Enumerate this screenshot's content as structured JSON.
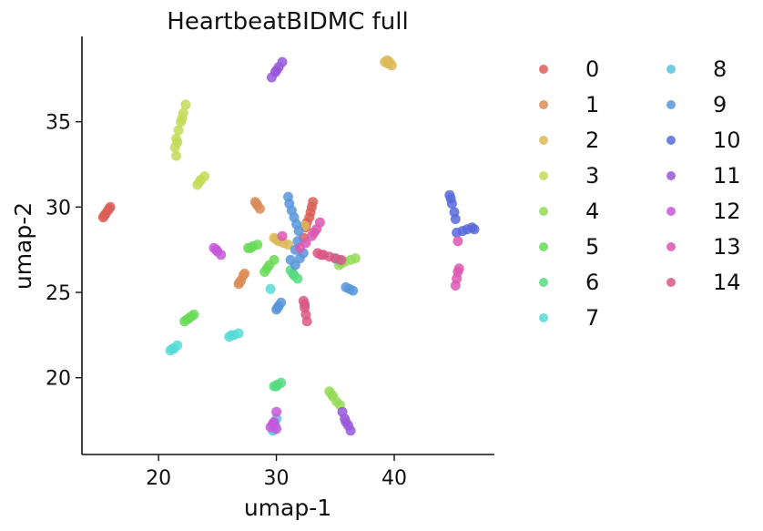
{
  "chart_data": {
    "type": "scatter",
    "title": "HeartbeatBIDMC full",
    "xlabel": "umap-1",
    "ylabel": "umap-2",
    "xlim": [
      13.5,
      48.5
    ],
    "ylim": [
      15.5,
      40.0
    ],
    "xticks": [
      20,
      30,
      40
    ],
    "yticks": [
      20,
      25,
      30,
      35
    ],
    "grid": false,
    "legend_position": "right-outside",
    "legend_columns": 2,
    "series": [
      {
        "name": "0",
        "color": "#db5f57",
        "points": [
          [
            15.3,
            29.4
          ],
          [
            15.5,
            29.6
          ],
          [
            15.7,
            29.8
          ],
          [
            15.9,
            30.0
          ],
          [
            15.4,
            29.5
          ],
          [
            15.8,
            29.9
          ],
          [
            32.3,
            28.2
          ],
          [
            32.5,
            28.8
          ],
          [
            32.8,
            29.4
          ],
          [
            33.0,
            30.0
          ],
          [
            33.1,
            30.3
          ],
          [
            32.6,
            29.1
          ],
          [
            32.9,
            29.7
          ]
        ]
      },
      {
        "name": "1",
        "color": "#db8c57",
        "points": [
          [
            28.2,
            30.3
          ],
          [
            28.4,
            30.1
          ],
          [
            28.6,
            29.9
          ],
          [
            28.3,
            30.2
          ],
          [
            26.8,
            25.5
          ],
          [
            27.0,
            25.7
          ],
          [
            27.2,
            26.0
          ],
          [
            27.3,
            26.1
          ],
          [
            26.9,
            25.6
          ]
        ]
      },
      {
        "name": "2",
        "color": "#dbba57",
        "points": [
          [
            39.2,
            38.5
          ],
          [
            39.5,
            38.4
          ],
          [
            39.8,
            38.3
          ],
          [
            39.4,
            38.6
          ],
          [
            39.6,
            38.5
          ],
          [
            29.8,
            28.2
          ],
          [
            30.2,
            28.0
          ],
          [
            30.6,
            27.9
          ],
          [
            31.0,
            27.8
          ],
          [
            32.4,
            28.9
          ],
          [
            30.0,
            28.1
          ]
        ]
      },
      {
        "name": "3",
        "color": "#c3db57",
        "points": [
          [
            21.5,
            33.0
          ],
          [
            21.4,
            33.5
          ],
          [
            21.5,
            34.0
          ],
          [
            21.7,
            34.5
          ],
          [
            21.9,
            35.0
          ],
          [
            22.1,
            35.5
          ],
          [
            22.3,
            36.0
          ],
          [
            22.0,
            35.2
          ],
          [
            21.6,
            33.8
          ],
          [
            23.3,
            31.3
          ],
          [
            23.6,
            31.6
          ],
          [
            23.9,
            31.8
          ],
          [
            23.5,
            31.5
          ]
        ]
      },
      {
        "name": "4",
        "color": "#95db57",
        "points": [
          [
            34.5,
            19.2
          ],
          [
            34.8,
            18.9
          ],
          [
            35.1,
            18.6
          ],
          [
            35.4,
            18.4
          ],
          [
            34.7,
            19.0
          ],
          [
            35.3,
            26.6
          ],
          [
            35.8,
            26.8
          ],
          [
            36.3,
            26.9
          ],
          [
            36.7,
            27.0
          ],
          [
            35.5,
            26.7
          ]
        ]
      },
      {
        "name": "5",
        "color": "#68db57",
        "points": [
          [
            22.2,
            23.3
          ],
          [
            22.6,
            23.5
          ],
          [
            23.0,
            23.7
          ],
          [
            22.4,
            23.4
          ],
          [
            22.8,
            23.6
          ],
          [
            27.6,
            27.6
          ],
          [
            28.0,
            27.7
          ],
          [
            28.4,
            27.8
          ],
          [
            27.8,
            27.6
          ],
          [
            29.0,
            26.2
          ],
          [
            29.4,
            26.6
          ],
          [
            29.8,
            26.9
          ],
          [
            29.2,
            26.4
          ]
        ]
      },
      {
        "name": "6",
        "color": "#57db80",
        "points": [
          [
            29.8,
            19.5
          ],
          [
            30.1,
            19.6
          ],
          [
            30.4,
            19.7
          ],
          [
            30.0,
            19.5
          ],
          [
            31.2,
            26.3
          ],
          [
            31.5,
            26.0
          ],
          [
            31.8,
            25.8
          ],
          [
            31.4,
            26.1
          ]
        ]
      },
      {
        "name": "7",
        "color": "#57dbd6",
        "points": [
          [
            21.0,
            21.6
          ],
          [
            21.3,
            21.7
          ],
          [
            21.6,
            21.9
          ],
          [
            21.2,
            21.7
          ],
          [
            26.0,
            22.4
          ],
          [
            26.4,
            22.5
          ],
          [
            26.8,
            22.6
          ],
          [
            26.2,
            22.5
          ],
          [
            29.5,
            25.2
          ]
        ]
      },
      {
        "name": "8",
        "color": "#57c3db",
        "points": [
          [
            29.7,
            16.9
          ],
          [
            29.8,
            17.3
          ],
          [
            30.0,
            17.6
          ],
          [
            29.9,
            17.2
          ],
          [
            35.0,
            27.0
          ],
          [
            35.3,
            26.9
          ]
        ]
      },
      {
        "name": "9",
        "color": "#5795db",
        "points": [
          [
            31.0,
            30.6
          ],
          [
            31.1,
            30.2
          ],
          [
            31.3,
            29.8
          ],
          [
            31.5,
            29.4
          ],
          [
            31.7,
            29.0
          ],
          [
            31.9,
            28.6
          ],
          [
            31.8,
            28.0
          ],
          [
            31.6,
            27.5
          ],
          [
            31.2,
            26.9
          ],
          [
            31.6,
            26.6
          ],
          [
            32.0,
            27.0
          ],
          [
            32.3,
            27.3
          ],
          [
            35.9,
            25.3
          ],
          [
            36.2,
            25.2
          ],
          [
            36.5,
            25.1
          ],
          [
            30.0,
            24.0
          ],
          [
            30.2,
            24.2
          ],
          [
            30.4,
            24.4
          ],
          [
            30.1,
            24.1
          ]
        ]
      },
      {
        "name": "10",
        "color": "#5768db",
        "points": [
          [
            44.7,
            30.7
          ],
          [
            44.9,
            30.2
          ],
          [
            45.1,
            29.7
          ],
          [
            45.2,
            29.3
          ],
          [
            45.3,
            28.5
          ],
          [
            45.8,
            28.6
          ],
          [
            46.2,
            28.7
          ],
          [
            46.6,
            28.8
          ],
          [
            46.8,
            28.7
          ],
          [
            44.8,
            30.5
          ]
        ]
      },
      {
        "name": "11",
        "color": "#9857db",
        "points": [
          [
            29.6,
            37.6
          ],
          [
            29.9,
            37.9
          ],
          [
            30.2,
            38.2
          ],
          [
            30.5,
            38.5
          ],
          [
            30.0,
            38.0
          ],
          [
            35.6,
            18.0
          ],
          [
            35.8,
            17.6
          ],
          [
            36.1,
            17.2
          ],
          [
            36.3,
            16.9
          ],
          [
            35.9,
            17.4
          ]
        ]
      },
      {
        "name": "12",
        "color": "#c657db",
        "points": [
          [
            24.7,
            27.6
          ],
          [
            25.0,
            27.4
          ],
          [
            25.3,
            27.2
          ],
          [
            24.9,
            27.5
          ],
          [
            29.5,
            17.1
          ],
          [
            29.8,
            17.4
          ],
          [
            30.0,
            17.0
          ],
          [
            29.7,
            17.3
          ],
          [
            30.0,
            18.0
          ]
        ]
      },
      {
        "name": "13",
        "color": "#db57b2",
        "points": [
          [
            32.0,
            27.6
          ],
          [
            32.5,
            27.9
          ],
          [
            33.0,
            28.3
          ],
          [
            33.4,
            28.7
          ],
          [
            33.7,
            29.1
          ],
          [
            33.2,
            28.5
          ],
          [
            30.5,
            28.3
          ],
          [
            45.2,
            25.4
          ],
          [
            45.3,
            25.8
          ],
          [
            45.4,
            26.2
          ],
          [
            45.5,
            26.4
          ],
          [
            45.4,
            28.0
          ]
        ]
      },
      {
        "name": "14",
        "color": "#db5784",
        "points": [
          [
            32.3,
            24.5
          ],
          [
            32.4,
            24.1
          ],
          [
            32.5,
            23.7
          ],
          [
            32.6,
            23.3
          ],
          [
            32.4,
            24.3
          ],
          [
            33.5,
            27.3
          ],
          [
            34.0,
            27.2
          ],
          [
            34.5,
            27.1
          ],
          [
            35.0,
            27.0
          ],
          [
            35.5,
            26.9
          ],
          [
            33.8,
            27.2
          ]
        ]
      }
    ]
  }
}
